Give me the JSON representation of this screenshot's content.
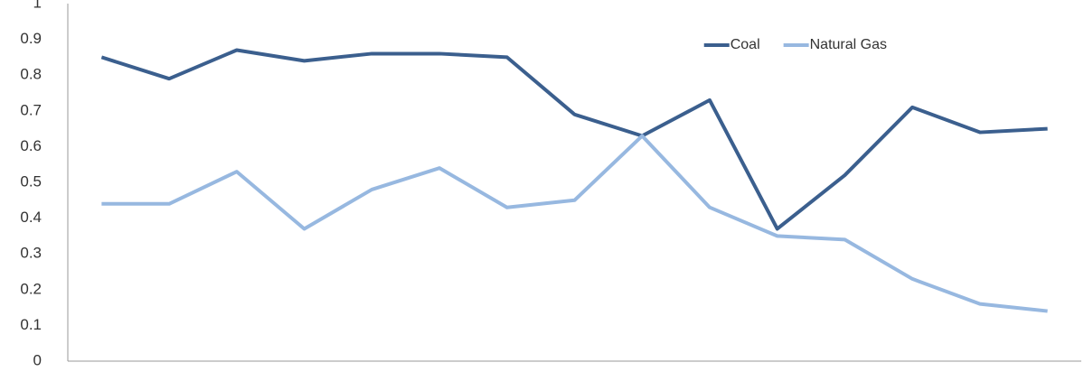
{
  "chart_data": {
    "type": "line",
    "categories": [
      null,
      null,
      null,
      null,
      null,
      null,
      null,
      null,
      null,
      null,
      null,
      null,
      null,
      null,
      null
    ],
    "series": [
      {
        "name": "Coal",
        "color": "#3b5f8e",
        "values": [
          0.85,
          0.79,
          0.87,
          0.84,
          0.86,
          0.86,
          0.85,
          0.69,
          0.63,
          0.73,
          0.37,
          0.52,
          0.71,
          0.64,
          0.65
        ]
      },
      {
        "name": "Natural Gas",
        "color": "#97b8e0",
        "values": [
          0.44,
          0.44,
          0.53,
          0.37,
          0.48,
          0.54,
          0.43,
          0.45,
          0.63,
          0.43,
          0.35,
          0.34,
          0.23,
          0.16,
          0.14
        ]
      }
    ],
    "ylim": [
      0,
      1
    ],
    "yticks": [
      0,
      0.1,
      0.2,
      0.3,
      0.4,
      0.5,
      0.6,
      0.7,
      0.8,
      0.9,
      1
    ],
    "grid": false,
    "legend": "upper right"
  }
}
